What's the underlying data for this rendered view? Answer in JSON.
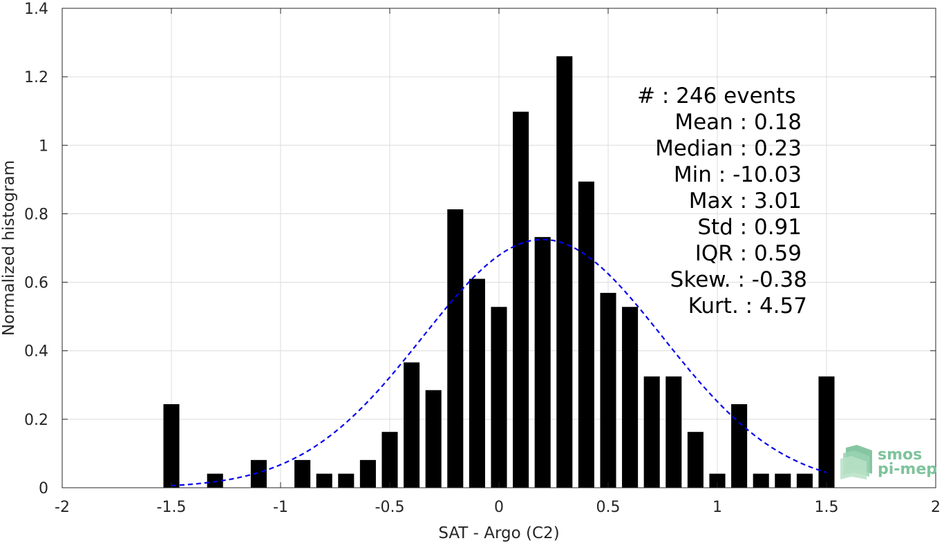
{
  "chart_data": {
    "type": "bar",
    "xlabel": "SAT - Argo (C2)",
    "ylabel": "Normalized histogram",
    "xlim": [
      -2,
      2
    ],
    "ylim": [
      0,
      1.4
    ],
    "xticks": [
      -2,
      -1.5,
      -1,
      -0.5,
      0,
      0.5,
      1,
      1.5,
      2
    ],
    "xtick_labels": [
      "-2",
      "-1.5",
      "-1",
      "-0.5",
      "0",
      "0.5",
      "1",
      "1.5",
      "2"
    ],
    "yticks": [
      0,
      0.2,
      0.4,
      0.6,
      0.8,
      1,
      1.2,
      1.4
    ],
    "ytick_labels": [
      "0",
      "0.2",
      "0.4",
      "0.6",
      "0.8",
      "1",
      "1.2",
      "1.4"
    ],
    "grid": true,
    "bar_color": "#000000",
    "bin_width": 0.1,
    "x": [
      -1.5,
      -1.4,
      -1.3,
      -1.2,
      -1.1,
      -1.0,
      -0.9,
      -0.8,
      -0.7,
      -0.6,
      -0.5,
      -0.4,
      -0.3,
      -0.2,
      -0.1,
      0.0,
      0.1,
      0.2,
      0.3,
      0.4,
      0.5,
      0.6,
      0.7,
      0.8,
      0.9,
      1.0,
      1.1,
      1.2,
      1.3,
      1.4,
      1.5
    ],
    "values": [
      0.244,
      0,
      0.041,
      0,
      0.081,
      0,
      0.081,
      0.041,
      0.041,
      0.081,
      0.163,
      0.366,
      0.285,
      0.813,
      0.61,
      0.528,
      1.098,
      0.732,
      1.26,
      0.894,
      0.569,
      0.528,
      0.325,
      0.325,
      0.163,
      0.041,
      0.244,
      0.041,
      0.041,
      0.041,
      0.325
    ],
    "fit_curve": {
      "style": "dashed",
      "color": "#0000ee",
      "mean": 0.2,
      "std": 0.55,
      "peak": 0.725,
      "x_range": [
        -1.5,
        1.5
      ]
    }
  },
  "stats_lines": [
    "#  : 246 events",
    "Mean : 0.18",
    "Median : 0.23",
    "Min : -10.03",
    "Max : 3.01",
    "Std : 0.91",
    "IQR : 0.59",
    "Skew. : -0.38",
    "Kurt. : 4.57"
  ],
  "logo": {
    "line1": "smos",
    "line2": "pi-mep",
    "color": "#7fc39c"
  }
}
